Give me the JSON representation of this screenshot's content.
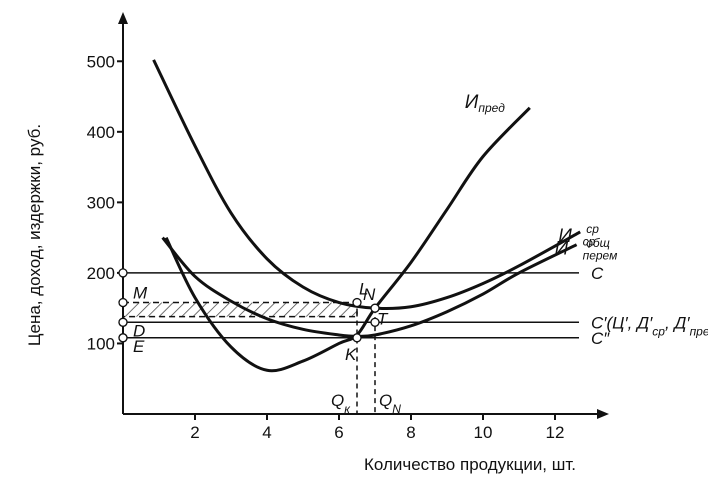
{
  "chart_data": {
    "type": "line",
    "title_y": "Цена, доход, издержки, руб.",
    "title_x": "Количество продукции, шт.",
    "xlim": [
      0,
      13
    ],
    "ylim": [
      0,
      550
    ],
    "xticks": [
      2,
      4,
      6,
      8,
      10,
      12
    ],
    "yticks": [
      100,
      200,
      300,
      400,
      500
    ],
    "color": "#111111",
    "series": [
      {
        "name": "И",
        "sub": "пред",
        "x": [
          1.2,
          2,
          3,
          4,
          5,
          6,
          6.5,
          7,
          8,
          9,
          10,
          11.3
        ],
        "values": [
          250,
          165,
          95,
          62,
          75,
          100,
          112,
          150,
          215,
          290,
          365,
          434
        ]
      },
      {
        "name": "И",
        "sup": "ср",
        "sub": "общ",
        "x": [
          0.85,
          2,
          3,
          4,
          5,
          6,
          7,
          8,
          9,
          10,
          11,
          12.7
        ],
        "values": [
          502,
          380,
          285,
          220,
          180,
          158,
          150,
          152,
          165,
          185,
          210,
          258
        ]
      },
      {
        "name": "И",
        "sup": "ср",
        "sub": "перем",
        "x": [
          1.1,
          2,
          3,
          4,
          5,
          6,
          6.5,
          7,
          8,
          9,
          10,
          11,
          12.6
        ],
        "values": [
          250,
          195,
          160,
          135,
          120,
          112,
          110,
          112,
          125,
          145,
          170,
          200,
          240
        ]
      }
    ],
    "hlines": [
      {
        "value": 200,
        "parts": [
          {
            "t": "C"
          }
        ]
      },
      {
        "value": 130,
        "parts": [
          {
            "t": "C′(Ц′, Д′"
          },
          {
            "t": "ср",
            "sub": true
          },
          {
            "t": ", Д′"
          },
          {
            "t": "пред",
            "sub": true
          },
          {
            "t": ")"
          }
        ]
      },
      {
        "value": 108,
        "parts": [
          {
            "t": "C″"
          }
        ]
      }
    ],
    "hatch": [
      138,
      158,
      6.5
    ],
    "points": [
      {
        "label": "M",
        "x": 0,
        "y": 158
      },
      {
        "label": "D",
        "x": 0,
        "y": 130
      },
      {
        "label": "E",
        "x": 0,
        "y": 108
      },
      {
        "label": "L",
        "x": 6.5,
        "y": 158
      },
      {
        "label": "N",
        "x": 7,
        "y": 150
      },
      {
        "label": "T",
        "x": 7,
        "y": 130
      },
      {
        "label": "K",
        "x": 6.5,
        "y": 108
      }
    ],
    "qmarks": [
      {
        "x": 6.5,
        "parts": [
          {
            "t": "Q"
          },
          {
            "t": "к",
            "sub": true
          }
        ]
      },
      {
        "x": 7,
        "parts": [
          {
            "t": "Q"
          },
          {
            "t": "N",
            "sub": true
          }
        ]
      }
    ]
  }
}
